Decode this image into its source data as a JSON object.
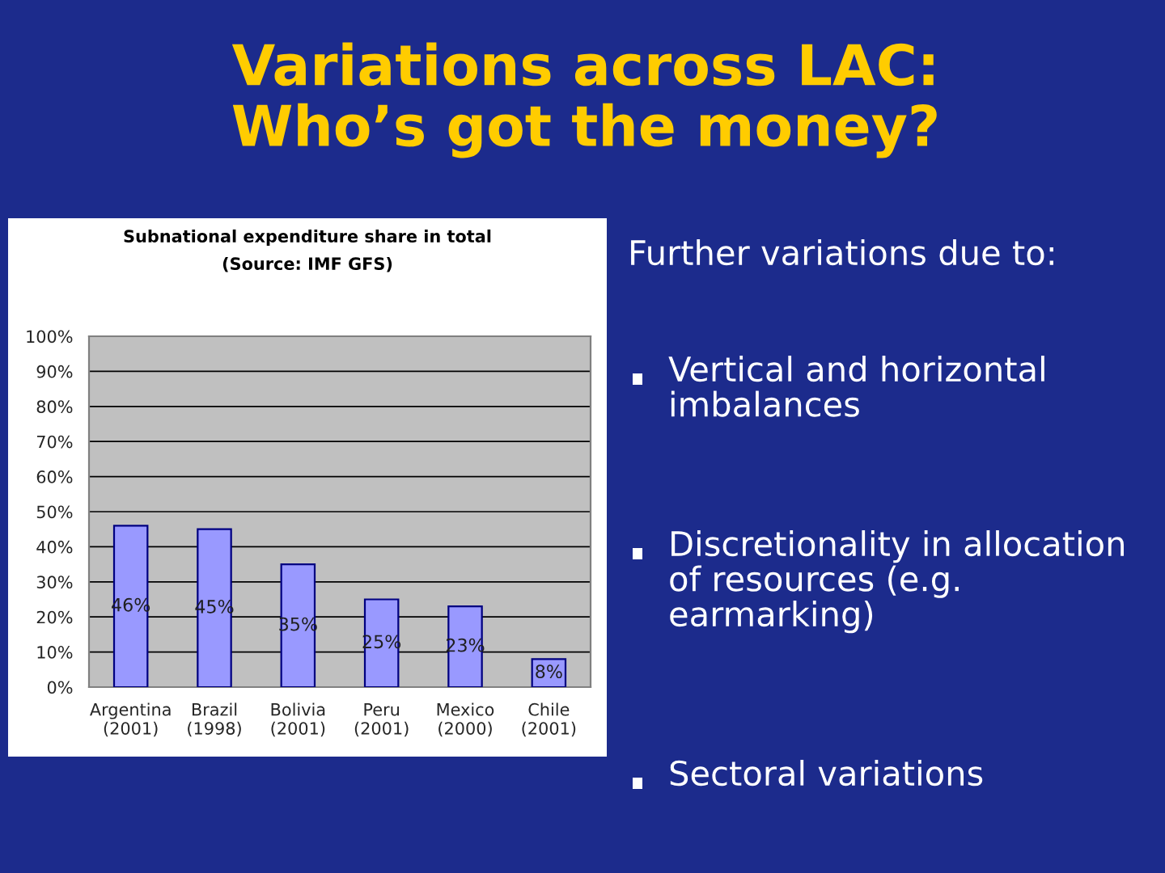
{
  "chart_data": {
    "type": "bar",
    "title": "Subnational expenditure share in total",
    "subtitle": "(Source: IMF GFS)",
    "categories": [
      "Argentina\n(2001)",
      "Brazil\n(1998)",
      "Bolivia\n(2001)",
      "Peru\n(2001)",
      "Mexico\n(2000)",
      "Chile\n(2001)"
    ],
    "values": [
      46,
      45,
      35,
      25,
      23,
      8
    ],
    "color": "#9999ff",
    "value_labels": [
      "46%",
      "45%",
      "35%",
      "25%",
      "23%",
      "8%"
    ],
    "ylim": [
      0,
      100
    ],
    "yticks": [
      {
        "value": 0,
        "label": "0%"
      },
      {
        "value": 10,
        "label": "10%"
      },
      {
        "value": 20,
        "label": "20%"
      },
      {
        "value": 30,
        "label": "30%"
      },
      {
        "value": 40,
        "label": "40%"
      },
      {
        "value": 50,
        "label": "50%"
      },
      {
        "value": 60,
        "label": "60%"
      },
      {
        "value": 70,
        "label": "70%"
      },
      {
        "value": 80,
        "label": "80%"
      },
      {
        "value": 90,
        "label": "90%"
      },
      {
        "value": 100,
        "label": "100%"
      }
    ],
    "grid": "y",
    "legend": false,
    "annotations": [
      "Variations across LAC:\nWho’s got the money?",
      "Further variations due to:",
      "Vertical and horizontal imbalances",
      "Discretionality in allocation of resources (e.g. earmarking)",
      "Sectoral variations"
    ]
  }
}
